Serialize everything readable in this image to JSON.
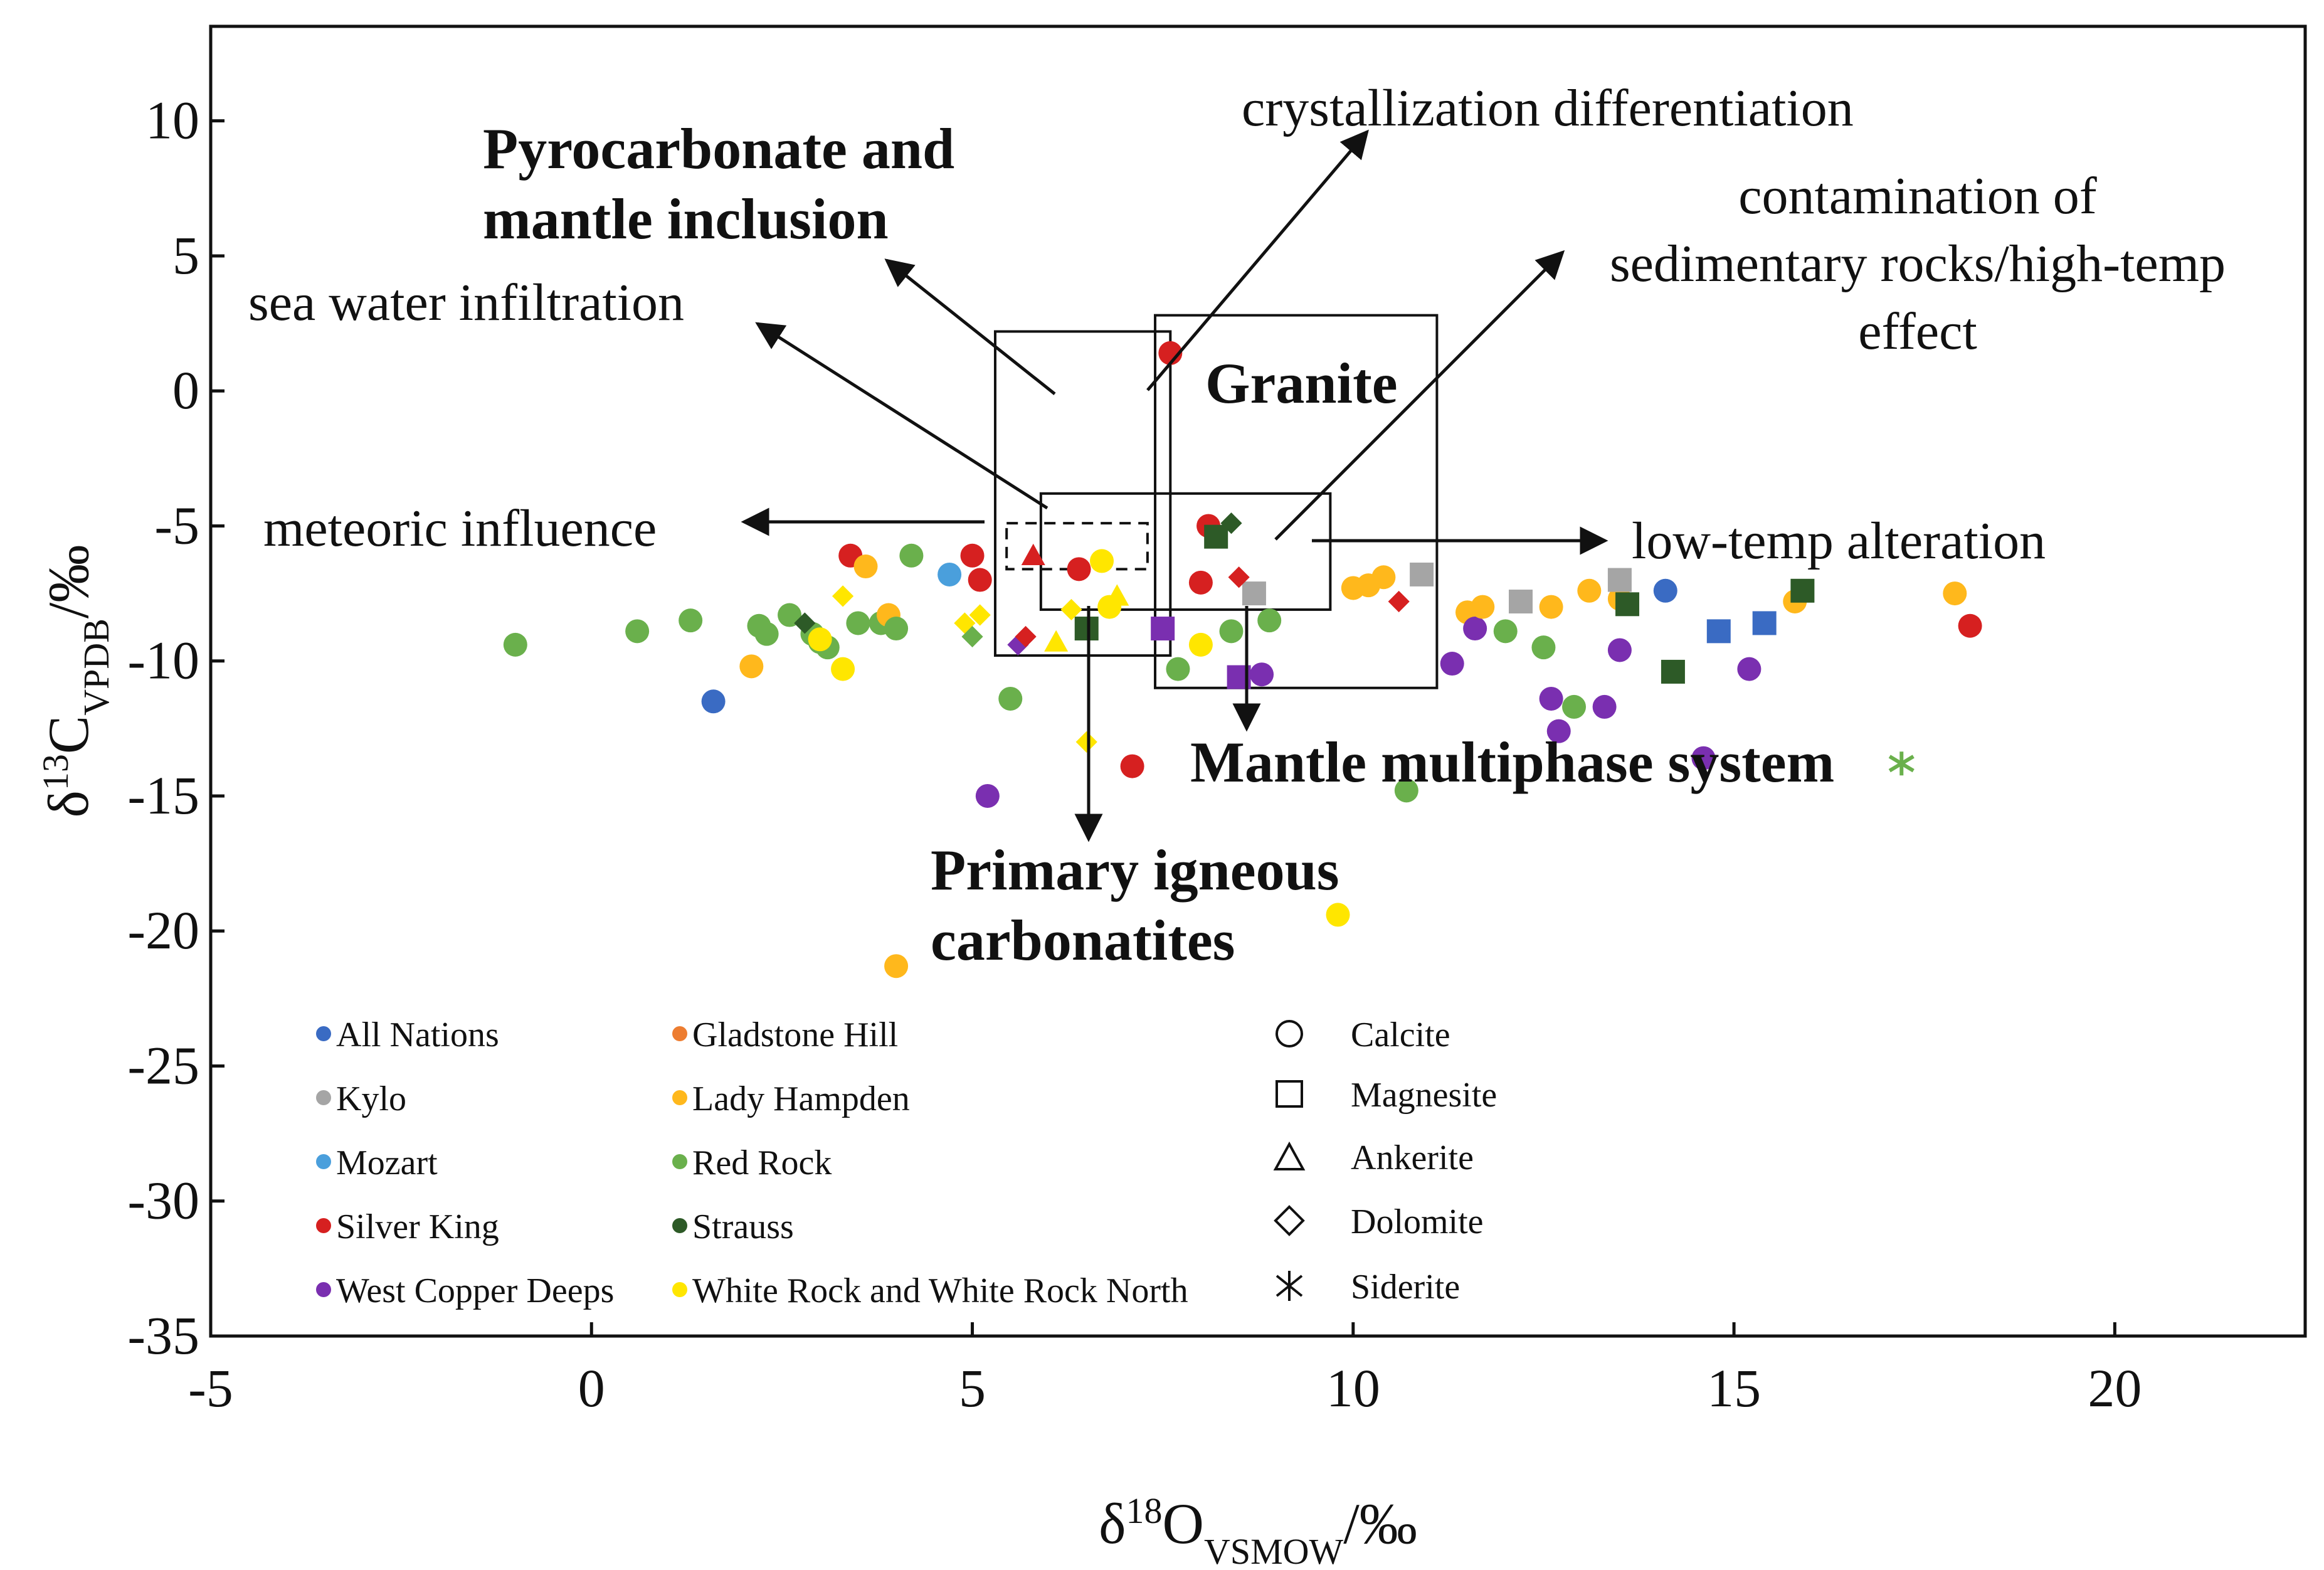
{
  "chart_data": {
    "type": "scatter",
    "title": "",
    "xlabel": "δ18OVSMOW/‰",
    "ylabel": "δ13CVPDB/‰",
    "xlabel_parts": {
      "delta": "δ",
      "mass": "18",
      "element": "O",
      "standard": "VSMOW",
      "unit": "/‰"
    },
    "ylabel_parts": {
      "delta": "δ",
      "mass": "13",
      "element": "C",
      "standard": "VPDB",
      "unit": "/‰"
    },
    "xlim": [
      -5,
      22.5
    ],
    "ylim": [
      -35,
      13.5
    ],
    "xticks": [
      -5,
      0,
      5,
      10,
      15,
      20
    ],
    "yticks": [
      10,
      5,
      0,
      -5,
      -10,
      -15,
      -20,
      -25,
      -30,
      -35
    ],
    "legend_placement": "bottom",
    "colors": {
      "All Nations": "#3a6bc3",
      "Gladstone Hill": "#ed7d31",
      "Kylo": "#a5a5a5",
      "Lady Hampden": "#ffb81c",
      "Mozart": "#4a9fdc",
      "Red Rock": "#6ab04c",
      "Silver King": "#d62020",
      "Strauss": "#2d5a27",
      "West Copper Deeps": "#7a2fb0",
      "White Rock and White Rock North": "#ffe600"
    },
    "legend_locations": [
      "All Nations",
      "Gladstone Hill",
      "Kylo",
      "Lady Hampden",
      "Mozart",
      "Red Rock",
      "Silver King",
      "Strauss",
      "West Copper Deeps",
      "White Rock and White Rock North"
    ],
    "legend_minerals": [
      "Calcite",
      "Magnesite",
      "Ankerite",
      "Dolomite",
      "Siderite"
    ],
    "annotations": [
      {
        "id": "crystallization",
        "text": "crystallization differentiation"
      },
      {
        "id": "pyrocarbonate",
        "text": "Pyrocarbonate and",
        "text2": "mantle inclusion"
      },
      {
        "id": "contamination",
        "text": "contamination of",
        "text2": "sedimentary rocks/high-temp",
        "text3": "effect"
      },
      {
        "id": "seawater",
        "text": "sea water infiltration"
      },
      {
        "id": "granite",
        "text": "Granite"
      },
      {
        "id": "meteoric",
        "text": "meteoric influence"
      },
      {
        "id": "lowtemp",
        "text": "low-temp alteration"
      },
      {
        "id": "mantle",
        "text": "Mantle multiphase system"
      },
      {
        "id": "primary",
        "text": "Primary igneous",
        "text2": "carbonatites"
      }
    ],
    "series": [
      {
        "name": "Calcite",
        "marker": "circle",
        "points": [
          [
            -1.0,
            -9.4,
            "Red Rock"
          ],
          [
            0.6,
            -8.9,
            "Red Rock"
          ],
          [
            1.3,
            -8.5,
            "Red Rock"
          ],
          [
            1.6,
            -11.5,
            "All Nations"
          ],
          [
            2.1,
            -10.2,
            "Lady Hampden"
          ],
          [
            2.2,
            -8.7,
            "Red Rock"
          ],
          [
            2.3,
            -9.0,
            "Red Rock"
          ],
          [
            2.6,
            -8.3,
            "Red Rock"
          ],
          [
            2.9,
            -9.0,
            "Red Rock"
          ],
          [
            3.0,
            -9.3,
            "Red Rock"
          ],
          [
            3.1,
            -9.5,
            "Red Rock"
          ],
          [
            3.3,
            -10.3,
            "White Rock and White Rock North"
          ],
          [
            3.0,
            -9.2,
            "White Rock and White Rock North"
          ],
          [
            3.4,
            -6.1,
            "Silver King"
          ],
          [
            3.5,
            -8.6,
            "Red Rock"
          ],
          [
            3.6,
            -6.5,
            "Lady Hampden"
          ],
          [
            3.8,
            -8.6,
            "Red Rock"
          ],
          [
            3.9,
            -8.3,
            "Lady Hampden"
          ],
          [
            4.0,
            -8.8,
            "Red Rock"
          ],
          [
            4.0,
            -21.3,
            "Lady Hampden"
          ],
          [
            4.2,
            -6.1,
            "Red Rock"
          ],
          [
            4.7,
            -6.8,
            "Mozart"
          ],
          [
            5.0,
            -6.1,
            "Silver King"
          ],
          [
            5.1,
            -7.0,
            "Silver King"
          ],
          [
            5.2,
            -15.0,
            "West Copper Deeps"
          ],
          [
            5.5,
            -11.4,
            "Red Rock"
          ],
          [
            6.4,
            -6.6,
            "Silver King"
          ],
          [
            6.7,
            -6.3,
            "White Rock and White Rock North"
          ],
          [
            6.8,
            -8.0,
            "White Rock and White Rock North"
          ],
          [
            7.1,
            -13.9,
            "Silver King"
          ],
          [
            7.6,
            1.4,
            "Silver King"
          ],
          [
            7.7,
            -10.3,
            "Red Rock"
          ],
          [
            8.0,
            -7.1,
            "Silver King"
          ],
          [
            8.0,
            -9.4,
            "White Rock and White Rock North"
          ],
          [
            8.1,
            -5.0,
            "Silver King"
          ],
          [
            8.4,
            -8.9,
            "Red Rock"
          ],
          [
            8.8,
            -10.5,
            "West Copper Deeps"
          ],
          [
            8.9,
            -8.5,
            "Red Rock"
          ],
          [
            9.8,
            -19.4,
            "White Rock and White Rock North"
          ],
          [
            10.0,
            -7.3,
            "Lady Hampden"
          ],
          [
            10.2,
            -7.2,
            "Lady Hampden"
          ],
          [
            10.4,
            -6.9,
            "Lady Hampden"
          ],
          [
            10.7,
            -14.8,
            "Red Rock"
          ],
          [
            11.3,
            -10.1,
            "West Copper Deeps"
          ],
          [
            11.5,
            -8.2,
            "Lady Hampden"
          ],
          [
            11.6,
            -8.8,
            "West Copper Deeps"
          ],
          [
            11.7,
            -8.0,
            "Lady Hampden"
          ],
          [
            12.0,
            -8.9,
            "Red Rock"
          ],
          [
            12.5,
            -9.5,
            "Red Rock"
          ],
          [
            12.6,
            -11.4,
            "West Copper Deeps"
          ],
          [
            12.6,
            -8.0,
            "Lady Hampden"
          ],
          [
            12.7,
            -12.6,
            "West Copper Deeps"
          ],
          [
            12.9,
            -11.7,
            "Red Rock"
          ],
          [
            13.1,
            -7.4,
            "Lady Hampden"
          ],
          [
            13.3,
            -11.7,
            "West Copper Deeps"
          ],
          [
            13.5,
            -9.6,
            "West Copper Deeps"
          ],
          [
            13.5,
            -7.7,
            "Lady Hampden"
          ],
          [
            14.1,
            -7.4,
            "All Nations"
          ],
          [
            14.6,
            -13.6,
            "West Copper Deeps"
          ],
          [
            15.2,
            -10.3,
            "West Copper Deeps"
          ],
          [
            15.8,
            -7.8,
            "Lady Hampden"
          ],
          [
            17.9,
            -7.5,
            "Lady Hampden"
          ],
          [
            18.1,
            -8.7,
            "Silver King"
          ]
        ]
      },
      {
        "name": "Magnesite",
        "marker": "square",
        "points": [
          [
            6.5,
            -8.8,
            "Strauss"
          ],
          [
            7.5,
            -8.8,
            "West Copper Deeps"
          ],
          [
            8.2,
            -5.4,
            "Strauss"
          ],
          [
            8.5,
            -10.6,
            "West Copper Deeps"
          ],
          [
            8.7,
            -7.5,
            "Kylo"
          ],
          [
            10.9,
            -6.8,
            "Kylo"
          ],
          [
            12.2,
            -7.8,
            "Kylo"
          ],
          [
            13.5,
            -7.0,
            "Kylo"
          ],
          [
            13.6,
            -7.9,
            "Strauss"
          ],
          [
            14.2,
            -10.4,
            "Strauss"
          ],
          [
            14.8,
            -8.9,
            "All Nations"
          ],
          [
            15.4,
            -8.6,
            "All Nations"
          ],
          [
            15.9,
            -7.4,
            "Strauss"
          ]
        ]
      },
      {
        "name": "Ankerite",
        "marker": "triangle",
        "points": [
          [
            5.8,
            -6.1,
            "Silver King"
          ],
          [
            6.1,
            -9.3,
            "White Rock and White Rock North"
          ],
          [
            6.9,
            -7.6,
            "White Rock and White Rock North"
          ]
        ]
      },
      {
        "name": "Dolomite",
        "marker": "diamond",
        "points": [
          [
            2.8,
            -8.6,
            "Strauss"
          ],
          [
            3.3,
            -7.6,
            "White Rock and White Rock North"
          ],
          [
            4.9,
            -8.6,
            "White Rock and White Rock North"
          ],
          [
            5.0,
            -9.1,
            "Red Rock"
          ],
          [
            5.1,
            -8.3,
            "White Rock and White Rock North"
          ],
          [
            5.6,
            -9.4,
            "West Copper Deeps"
          ],
          [
            5.7,
            -9.1,
            "Silver King"
          ],
          [
            6.3,
            -8.1,
            "White Rock and White Rock North"
          ],
          [
            6.5,
            -13.0,
            "White Rock and White Rock North"
          ],
          [
            8.4,
            -4.9,
            "Strauss"
          ],
          [
            8.5,
            -6.9,
            "Silver King"
          ],
          [
            10.6,
            -7.8,
            "Silver King"
          ]
        ]
      },
      {
        "name": "Siderite",
        "marker": "asterisk",
        "points": [
          [
            17.2,
            -13.8,
            "Red Rock"
          ]
        ]
      }
    ]
  }
}
